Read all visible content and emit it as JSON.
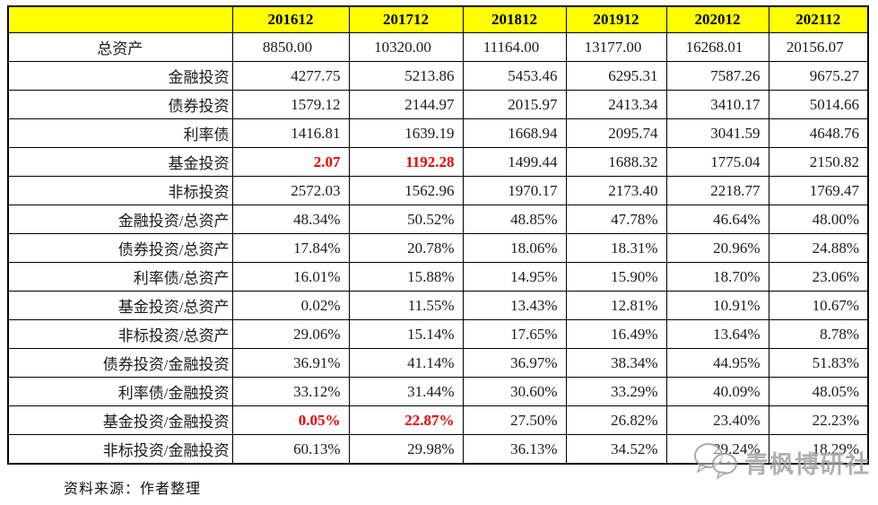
{
  "table": {
    "corner_label": "",
    "columns": [
      "201612",
      "201712",
      "201812",
      "201912",
      "202012",
      "202112"
    ],
    "rows": [
      {
        "label": "总资产",
        "values": [
          "8850.00",
          "10320.00",
          "11164.00",
          "13177.00",
          "16268.01",
          "20156.07"
        ],
        "red_cols": []
      },
      {
        "label": "金融投资",
        "values": [
          "4277.75",
          "5213.86",
          "5453.46",
          "6295.31",
          "7587.26",
          "9675.27"
        ],
        "red_cols": []
      },
      {
        "label": "债券投资",
        "values": [
          "1579.12",
          "2144.97",
          "2015.97",
          "2413.34",
          "3410.17",
          "5014.66"
        ],
        "red_cols": []
      },
      {
        "label": "利率债",
        "values": [
          "1416.81",
          "1639.19",
          "1668.94",
          "2095.74",
          "3041.59",
          "4648.76"
        ],
        "red_cols": []
      },
      {
        "label": "基金投资",
        "values": [
          "2.07",
          "1192.28",
          "1499.44",
          "1688.32",
          "1775.04",
          "2150.82"
        ],
        "red_cols": [
          0,
          1
        ]
      },
      {
        "label": "非标投资",
        "values": [
          "2572.03",
          "1562.96",
          "1970.17",
          "2173.40",
          "2218.77",
          "1769.47"
        ],
        "red_cols": []
      },
      {
        "label": "金融投资/总资产",
        "values": [
          "48.34%",
          "50.52%",
          "48.85%",
          "47.78%",
          "46.64%",
          "48.00%"
        ],
        "red_cols": []
      },
      {
        "label": "债券投资/总资产",
        "values": [
          "17.84%",
          "20.78%",
          "18.06%",
          "18.31%",
          "20.96%",
          "24.88%"
        ],
        "red_cols": []
      },
      {
        "label": "利率债/总资产",
        "values": [
          "16.01%",
          "15.88%",
          "14.95%",
          "15.90%",
          "18.70%",
          "23.06%"
        ],
        "red_cols": []
      },
      {
        "label": "基金投资/总资产",
        "values": [
          "0.02%",
          "11.55%",
          "13.43%",
          "12.81%",
          "10.91%",
          "10.67%"
        ],
        "red_cols": []
      },
      {
        "label": "非标投资/总资产",
        "values": [
          "29.06%",
          "15.14%",
          "17.65%",
          "16.49%",
          "13.64%",
          "8.78%"
        ],
        "red_cols": []
      },
      {
        "label": "债券投资/金融投资",
        "values": [
          "36.91%",
          "41.14%",
          "36.97%",
          "38.34%",
          "44.95%",
          "51.83%"
        ],
        "red_cols": []
      },
      {
        "label": "利率债/金融投资",
        "values": [
          "33.12%",
          "31.44%",
          "30.60%",
          "33.29%",
          "40.09%",
          "48.05%"
        ],
        "red_cols": []
      },
      {
        "label": "基金投资/金融投资",
        "values": [
          "0.05%",
          "22.87%",
          "27.50%",
          "26.82%",
          "23.40%",
          "22.23%"
        ],
        "red_cols": [
          0,
          1
        ]
      },
      {
        "label": "非标投资/金融投资",
        "values": [
          "60.13%",
          "29.98%",
          "36.13%",
          "34.52%",
          "29.24%",
          "18.29%"
        ],
        "red_cols": []
      }
    ]
  },
  "colors": {
    "header_bg": "#FFFF00",
    "header_text": "#000000",
    "highlight_red": "#EE0000",
    "border": "#000000",
    "watermark_gray": "#A3A3A3"
  },
  "source_note": "资料来源：作者整理",
  "watermark": {
    "icon": "chat-bubbles-icon",
    "text": "青枫博研社"
  }
}
